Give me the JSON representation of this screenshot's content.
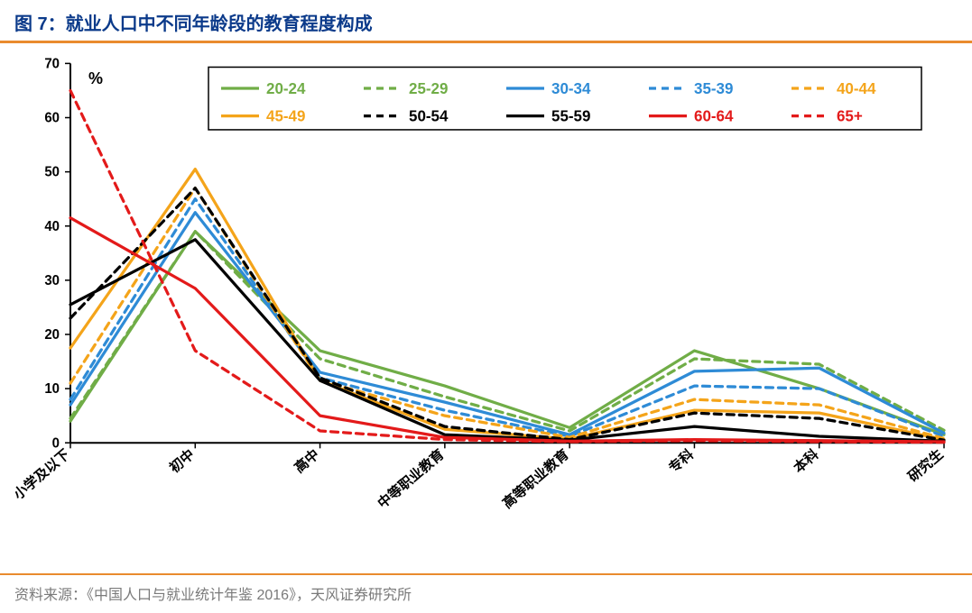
{
  "title": "图 7：就业人口中不同年龄段的教育程度构成",
  "source": "资料来源：《中国人口与就业统计年鉴 2016》，天风证券研究所",
  "chart": {
    "type": "line",
    "y_unit": "%",
    "ylim": [
      0,
      70
    ],
    "ytick_step": 10,
    "categories": [
      "小学及以下",
      "初中",
      "高中",
      "中等职业教育",
      "高等职业教育",
      "专科",
      "本科",
      "研究生"
    ],
    "background_color": "#ffffff",
    "axis_color": "#000000",
    "tick_fontsize": 15,
    "title_color": "#0b3a8a",
    "title_fontsize": 20,
    "line_width": 3.2,
    "legend_box_border": "#000000",
    "series": [
      {
        "name": "20-24",
        "label": "20-24",
        "color": "#70ad47",
        "dash": "",
        "values": [
          4,
          39,
          17,
          10.5,
          2.8,
          17,
          10,
          1.5
        ]
      },
      {
        "name": "25-29",
        "label": "25-29",
        "color": "#70ad47",
        "dash": "8 6",
        "values": [
          4.5,
          39,
          15.5,
          8.5,
          2.2,
          15.5,
          14.5,
          2.3
        ]
      },
      {
        "name": "30-34",
        "label": "30-34",
        "color": "#2e8bd6",
        "dash": "",
        "values": [
          7,
          42.5,
          13,
          7.5,
          1.5,
          13.2,
          13.8,
          1.8
        ]
      },
      {
        "name": "35-39",
        "label": "35-39",
        "color": "#2e8bd6",
        "dash": "8 6",
        "values": [
          8,
          45,
          12,
          6,
          1.2,
          10.5,
          10,
          1.2
        ]
      },
      {
        "name": "40-44",
        "label": "40-44",
        "color": "#f4a41a",
        "dash": "8 6",
        "values": [
          11,
          47,
          11.5,
          5,
          1.0,
          8,
          7,
          0.8
        ]
      },
      {
        "name": "45-49",
        "label": "45-49",
        "color": "#f4a41a",
        "dash": "",
        "values": [
          17.5,
          50.5,
          11.5,
          2.5,
          0.7,
          6,
          5.5,
          0.6
        ]
      },
      {
        "name": "50-54",
        "label": "50-54",
        "color": "#000000",
        "dash": "8 6",
        "values": [
          23,
          47,
          12,
          3,
          0.6,
          5.5,
          4.5,
          0.5
        ]
      },
      {
        "name": "55-59",
        "label": "55-59",
        "color": "#000000",
        "dash": "",
        "values": [
          25.5,
          37.5,
          11.5,
          1.5,
          0.5,
          3,
          1.2,
          0.3
        ]
      },
      {
        "name": "60-64",
        "label": "60-64",
        "color": "#e31a1a",
        "dash": "",
        "values": [
          41.5,
          28.5,
          5,
          1,
          0.3,
          0.6,
          0.4,
          0.2
        ]
      },
      {
        "name": "65+",
        "label": "65+",
        "color": "#e31a1a",
        "dash": "8 6",
        "values": [
          65,
          17,
          2.2,
          0.6,
          0.2,
          0.4,
          0.2,
          0.1
        ]
      }
    ],
    "legend_layout": {
      "cols": 5,
      "rows": 2
    }
  }
}
